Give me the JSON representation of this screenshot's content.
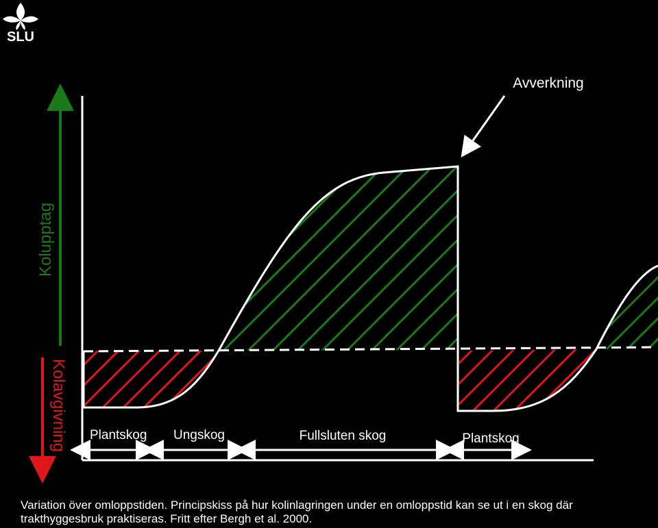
{
  "logo": {
    "text": "SLU",
    "icon": "slu-leaf-logo"
  },
  "annotation": "Avverkning",
  "axis": {
    "uptake_label": "Kolupptag",
    "release_label": "Kolavgivning"
  },
  "stages": {
    "plantskog_1": "Plantskog",
    "ungskog": "Ungskog",
    "fullsluten": "Fullsluten skog",
    "plantskog_2": "Plantskog"
  },
  "caption": {
    "line1": "Variation över omloppstiden. Principskiss på hur kolinlagringen under en omloppstid kan se ut i en skog där",
    "line2": "trakthyggesbruk praktiseras. Fritt efter Bergh et al. 2000."
  },
  "colors": {
    "background": "#000000",
    "line": "#ffffff",
    "uptake": "#1a7a1a",
    "release": "#e0161b"
  }
}
